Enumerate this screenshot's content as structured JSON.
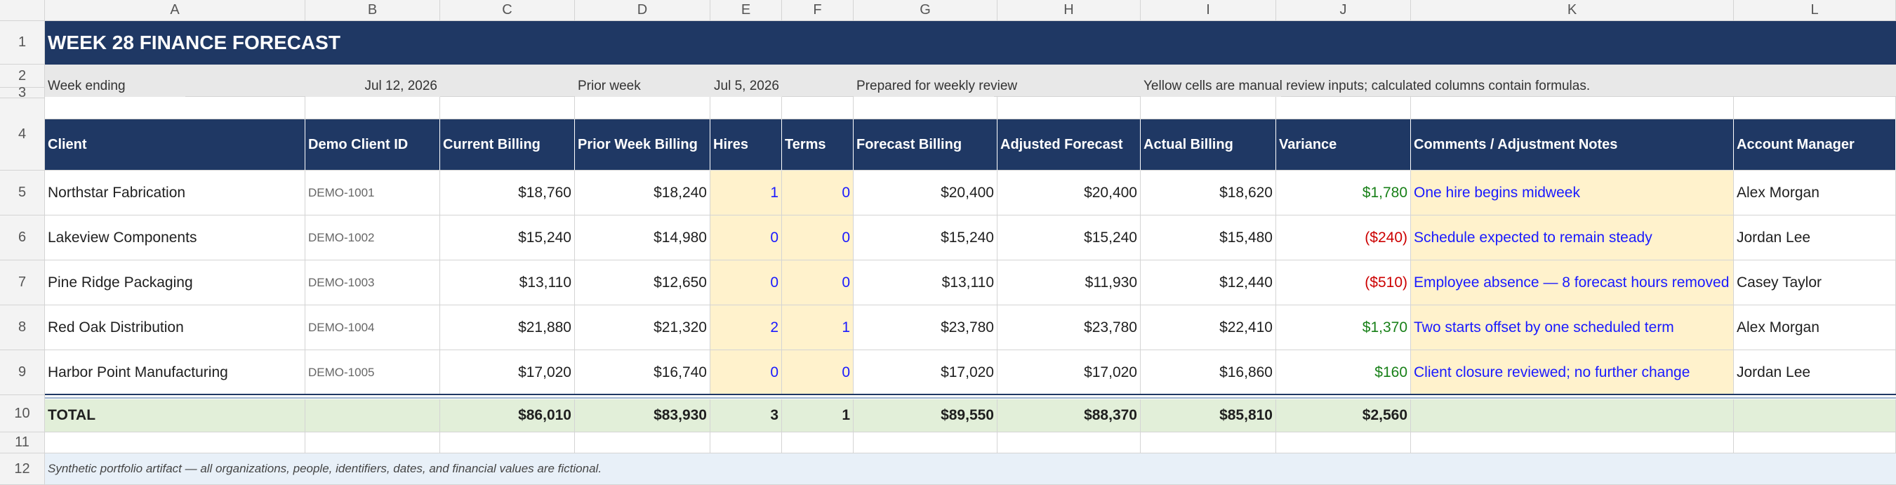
{
  "columns": [
    "A",
    "B",
    "C",
    "D",
    "E",
    "F",
    "G",
    "H",
    "I",
    "J",
    "K",
    "L"
  ],
  "rows": [
    "1",
    "2",
    "3",
    "4",
    "5",
    "6",
    "7",
    "8",
    "9",
    "10",
    "11",
    "12"
  ],
  "sheet": {
    "title": "WEEK 28 FINANCE FORECAST",
    "info": {
      "week_ending_label": "Week ending",
      "week_ending_value": "Jul 12, 2026",
      "prior_week_label": "Prior week",
      "prior_week_value": "Jul 5, 2026",
      "prepared": "Prepared for weekly review",
      "legend": "Yellow cells are manual review inputs; calculated columns contain formulas."
    },
    "headers": [
      "Client",
      "Demo Client ID",
      "Current Billing",
      "Prior Week Billing",
      "Hires",
      "Terms",
      "Forecast Billing",
      "Adjusted Forecast",
      "Actual Billing",
      "Variance",
      "Comments / Adjustment Notes",
      "Account Manager"
    ],
    "data_rows": [
      {
        "client": "Northstar Fabrication",
        "id": "DEMO-1001",
        "current": "$18,760",
        "prior": "$18,240",
        "hires": "1",
        "terms": "0",
        "forecast": "$20,400",
        "adjusted": "$20,400",
        "actual": "$18,620",
        "variance": "$1,780",
        "variance_sign": "pos",
        "note": "One hire begins midweek",
        "manager": "Alex Morgan"
      },
      {
        "client": "Lakeview Components",
        "id": "DEMO-1002",
        "current": "$15,240",
        "prior": "$14,980",
        "hires": "0",
        "terms": "0",
        "forecast": "$15,240",
        "adjusted": "$15,240",
        "actual": "$15,480",
        "variance": "($240)",
        "variance_sign": "neg",
        "note": "Schedule expected to remain steady",
        "manager": "Jordan Lee"
      },
      {
        "client": "Pine Ridge Packaging",
        "id": "DEMO-1003",
        "current": "$13,110",
        "prior": "$12,650",
        "hires": "0",
        "terms": "0",
        "forecast": "$13,110",
        "adjusted": "$11,930",
        "actual": "$12,440",
        "variance": "($510)",
        "variance_sign": "neg",
        "note": "Employee absence — 8 forecast hours removed",
        "manager": "Casey Taylor"
      },
      {
        "client": "Red Oak Distribution",
        "id": "DEMO-1004",
        "current": "$21,880",
        "prior": "$21,320",
        "hires": "2",
        "terms": "1",
        "forecast": "$23,780",
        "adjusted": "$23,780",
        "actual": "$22,410",
        "variance": "$1,370",
        "variance_sign": "pos",
        "note": "Two starts offset by one scheduled term",
        "manager": "Alex Morgan"
      },
      {
        "client": "Harbor Point Manufacturing",
        "id": "DEMO-1005",
        "current": "$17,020",
        "prior": "$16,740",
        "hires": "0",
        "terms": "0",
        "forecast": "$17,020",
        "adjusted": "$17,020",
        "actual": "$16,860",
        "variance": "$160",
        "variance_sign": "pos",
        "note": "Client closure reviewed; no further change",
        "manager": "Jordan Lee"
      }
    ],
    "totals": {
      "label": "TOTAL",
      "current": "$86,010",
      "prior": "$83,930",
      "hires": "3",
      "terms": "1",
      "forecast": "$89,550",
      "adjusted": "$88,370",
      "actual": "$85,810",
      "variance": "$2,560"
    },
    "footnote": "Synthetic portfolio artifact — all organizations, people, identifiers, dates, and financial values are fictional."
  },
  "colors": {
    "header_navy": "#1f3864",
    "input_yellow": "#fff2cc",
    "total_green": "#e2efd9",
    "positive": "#188018",
    "negative": "#cc0000",
    "input_text": "#1a1aff"
  }
}
